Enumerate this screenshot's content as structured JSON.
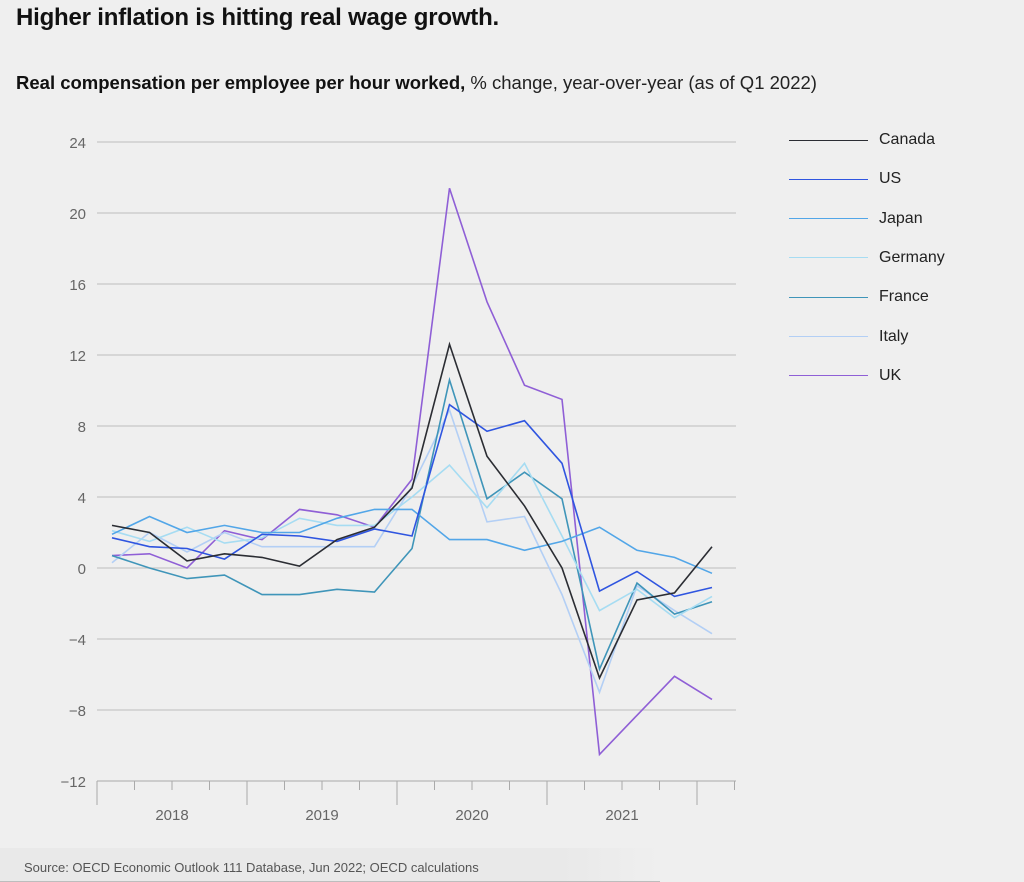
{
  "header": {
    "title": "Higher inflation is hitting real wage growth.",
    "subtitle_bold": "Real compensation per employee per hour worked,",
    "subtitle_rest": " % change, year-over-year (as of Q1 2022)"
  },
  "footer": {
    "source": "Source: OECD Economic Outlook 111 Database, Jun 2022; OECD calculations"
  },
  "chart_data": {
    "type": "line",
    "title": "Real compensation per employee per hour worked, % change, year-over-year (as of Q1 2022)",
    "xlabel": "",
    "ylabel": "",
    "x": [
      "2018Q1",
      "2018Q2",
      "2018Q3",
      "2018Q4",
      "2019Q1",
      "2019Q2",
      "2019Q3",
      "2019Q4",
      "2020Q1",
      "2020Q2",
      "2020Q3",
      "2020Q4",
      "2021Q1",
      "2021Q2",
      "2021Q3",
      "2021Q4",
      "2022Q1"
    ],
    "x_tick_labels": [
      "2018",
      "2019",
      "2020",
      "2021"
    ],
    "ylim": [
      -12,
      24
    ],
    "y_ticks": [
      24,
      20,
      16,
      12,
      8,
      4,
      0,
      -4,
      -8,
      -12
    ],
    "y_tick_labels": [
      "24",
      "20",
      "16",
      "12",
      "8",
      "4",
      "0",
      "−4",
      "−8",
      "−12"
    ],
    "grid": true,
    "legend_position": "right",
    "series": [
      {
        "name": "Canada",
        "color": "#2b2d33",
        "values": [
          2.4,
          2.0,
          0.4,
          0.8,
          0.6,
          0.1,
          1.6,
          2.3,
          4.5,
          12.6,
          6.3,
          3.5,
          0.0,
          -6.2,
          -1.8,
          -1.4,
          1.2
        ]
      },
      {
        "name": "US",
        "color": "#2f55e0",
        "values": [
          1.7,
          1.2,
          1.1,
          0.5,
          1.9,
          1.8,
          1.5,
          2.2,
          1.8,
          9.2,
          7.7,
          8.3,
          5.9,
          -1.3,
          -0.2,
          -1.6,
          -1.1
        ]
      },
      {
        "name": "Japan",
        "color": "#52a6e8",
        "values": [
          1.9,
          2.9,
          2.0,
          2.4,
          2.0,
          2.0,
          2.8,
          3.3,
          3.3,
          1.6,
          1.6,
          1.0,
          1.5,
          2.3,
          1.0,
          0.6,
          -0.3
        ]
      },
      {
        "name": "Germany",
        "color": "#a6dcf2",
        "values": [
          2.1,
          1.5,
          2.3,
          1.4,
          1.7,
          2.8,
          2.4,
          2.4,
          4.0,
          5.8,
          3.4,
          5.9,
          1.8,
          -2.4,
          -1.2,
          -2.8,
          -1.6
        ]
      },
      {
        "name": "France",
        "color": "#3f95b9",
        "values": [
          0.7,
          0.0,
          -0.6,
          -0.4,
          -1.5,
          -1.5,
          -1.2,
          -1.35,
          1.1,
          10.6,
          3.9,
          5.4,
          3.9,
          -5.7,
          -0.85,
          -2.6,
          -1.9
        ]
      },
      {
        "name": "Italy",
        "color": "#b3cff5",
        "values": [
          0.3,
          2.0,
          0.9,
          2.0,
          1.2,
          1.2,
          1.2,
          1.2,
          4.6,
          8.9,
          2.6,
          2.9,
          -1.5,
          -7.0,
          -1.0,
          -2.4,
          -3.7
        ]
      },
      {
        "name": "UK",
        "color": "#8f5fd6",
        "values": [
          0.7,
          0.8,
          0.0,
          2.1,
          1.6,
          3.3,
          3.0,
          2.3,
          5.0,
          21.4,
          15.0,
          10.3,
          9.5,
          -10.5,
          -8.3,
          -6.1,
          -7.4
        ]
      }
    ]
  }
}
